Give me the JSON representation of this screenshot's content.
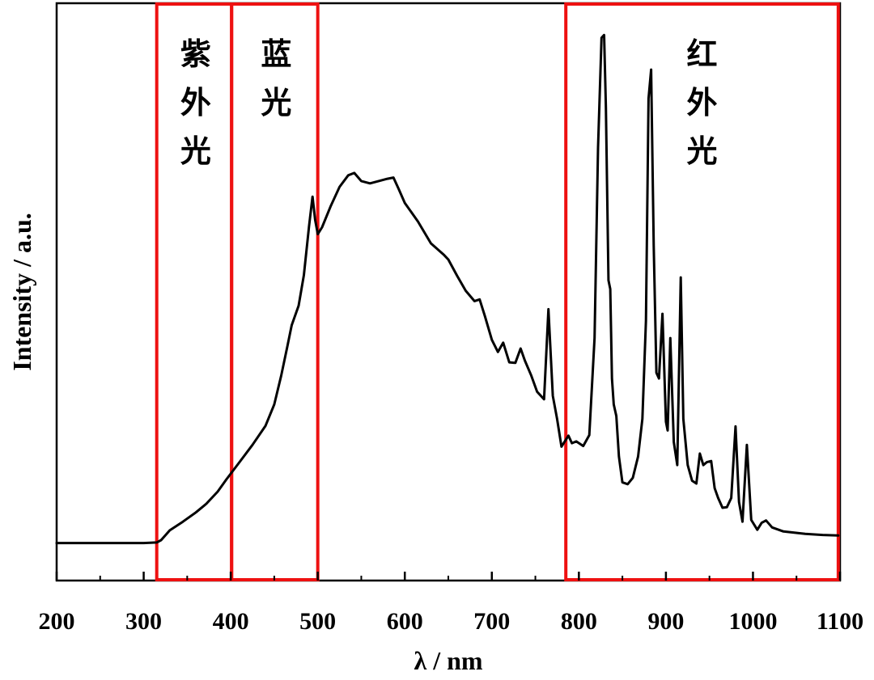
{
  "chart_data": {
    "type": "line",
    "xlabel": "λ  / nm",
    "ylabel": "Intensity / a.u.",
    "xlim": [
      200,
      1100
    ],
    "ylim": [
      0,
      100
    ],
    "x_ticks": [
      200,
      300,
      400,
      500,
      600,
      700,
      800,
      900,
      1000,
      1100
    ],
    "grid": false,
    "line_color": "#000000",
    "region_color": "#ee1111",
    "regions": [
      {
        "label_lines": [
          "紫",
          "外",
          "光"
        ],
        "x_start": 315,
        "x_end": 401
      },
      {
        "label_lines": [
          "蓝",
          "光"
        ],
        "x_start": 401,
        "x_end": 500
      },
      {
        "label_lines": [
          "红",
          "外",
          "光"
        ],
        "x_start": 785,
        "x_end": 1098
      }
    ],
    "series": [
      {
        "x": [
          200,
          250,
          300,
          315,
          320,
          330,
          345,
          360,
          372,
          385,
          395,
          410,
          425,
          440,
          450,
          458,
          465,
          470,
          478,
          484,
          490,
          494,
          497,
          500,
          505,
          515,
          525,
          535,
          542,
          550,
          560,
          570,
          580,
          587,
          593,
          600,
          615,
          630,
          645,
          650,
          660,
          670,
          680,
          686,
          692,
          700,
          707,
          713,
          720,
          727,
          733,
          738,
          745,
          752,
          760,
          765,
          770,
          775,
          780,
          788,
          792,
          797,
          805,
          812,
          818,
          822,
          826,
          829,
          831,
          834,
          836,
          838,
          840,
          843,
          846,
          850,
          856,
          862,
          868,
          873,
          877,
          880,
          883,
          886,
          889,
          892,
          896,
          900,
          902,
          905,
          909,
          913,
          917,
          920,
          925,
          930,
          935,
          939,
          943,
          947,
          952,
          956,
          960,
          965,
          970,
          975,
          980,
          984,
          988,
          993,
          998,
          1005,
          1010,
          1015,
          1022,
          1035,
          1060,
          1080,
          1098
        ],
        "y": [
          6.5,
          6.5,
          6.5,
          6.6,
          7.0,
          8.7,
          10.2,
          11.8,
          13.3,
          15.4,
          17.5,
          20.5,
          23.5,
          26.8,
          30.5,
          35.5,
          40.5,
          44.2,
          47.6,
          52.9,
          61.4,
          66.5,
          62.5,
          60.0,
          61.2,
          64.9,
          68.2,
          70.2,
          70.6,
          69.2,
          68.8,
          69.2,
          69.6,
          69.8,
          67.8,
          65.4,
          62.2,
          58.4,
          56.4,
          55.6,
          52.8,
          50.2,
          48.4,
          48.7,
          45.8,
          41.7,
          39.6,
          41.2,
          37.8,
          37.7,
          40.2,
          38.1,
          35.6,
          32.7,
          31.4,
          47.0,
          32.0,
          28.0,
          23.2,
          25.1,
          23.8,
          24.1,
          23.3,
          25.2,
          42.0,
          75.0,
          94.0,
          94.5,
          82.0,
          52.0,
          50.5,
          35.0,
          30.5,
          28.5,
          21.5,
          17.0,
          16.7,
          17.8,
          21.5,
          28.0,
          45.0,
          83.5,
          88.5,
          58.0,
          36.0,
          35.0,
          46.2,
          27.5,
          26.0,
          42.0,
          24.0,
          20.0,
          52.5,
          28.0,
          20.0,
          17.3,
          16.8,
          22.0,
          20.0,
          20.5,
          20.7,
          16.0,
          14.3,
          12.6,
          12.7,
          14.3,
          26.7,
          13.6,
          10.2,
          23.5,
          10.5,
          8.8,
          10.0,
          10.4,
          9.2,
          8.5,
          8.1,
          7.9,
          7.8
        ]
      }
    ]
  }
}
